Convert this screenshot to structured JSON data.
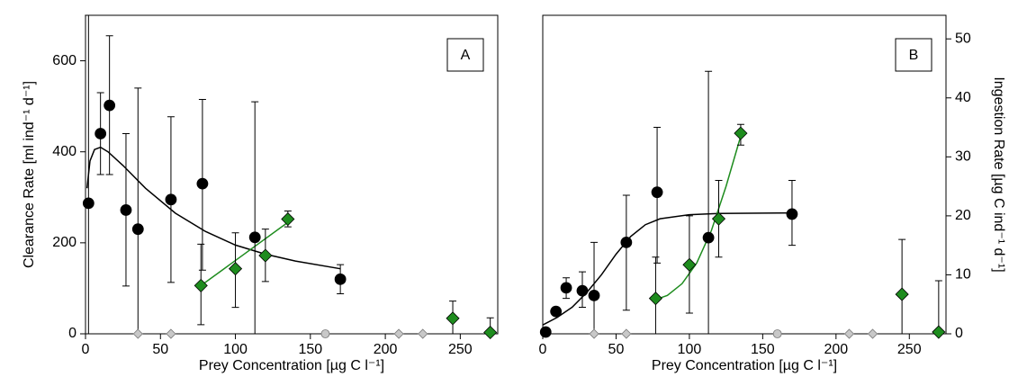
{
  "chart_data": [
    {
      "type": "scatter",
      "panel_label": "A",
      "xlabel": "Prey Concentration [µg C l⁻¹]",
      "ylabel": "Clearance Rate [ml ind⁻¹ d⁻¹]",
      "y_axis_side": "left",
      "xlim": [
        0,
        275
      ],
      "ylim": [
        0,
        700
      ],
      "xticks": [
        0,
        50,
        100,
        150,
        200,
        250
      ],
      "yticks": [
        0,
        200,
        400,
        600
      ],
      "series": [
        {
          "color": "#000000",
          "marker": "circle",
          "x": [
            2,
            10,
            16,
            27,
            35,
            57,
            78,
            113,
            170
          ],
          "values": [
            287,
            440,
            502,
            272,
            230,
            295,
            330,
            212,
            120
          ],
          "err_low": [
            0,
            350,
            350,
            105,
            0,
            113,
            140,
            0,
            88
          ],
          "err_high": [
            700,
            530,
            655,
            440,
            540,
            477,
            515,
            510,
            152
          ]
        },
        {
          "color": "#1e8c1e",
          "marker": "diamond",
          "x": [
            77,
            100,
            120,
            135,
            245,
            270
          ],
          "values": [
            106,
            143,
            172,
            252,
            34,
            3
          ],
          "err_low": [
            20,
            58,
            115,
            235,
            0,
            0
          ],
          "err_high": [
            197,
            222,
            230,
            270,
            72,
            35
          ]
        },
        {
          "color": "#c8c8c8",
          "marker": "diamond",
          "x": [
            35,
            57,
            209,
            225
          ],
          "values": [
            0,
            0,
            0,
            0
          ]
        },
        {
          "color": "#c8c8c8",
          "marker": "circle",
          "x": [
            160
          ],
          "values": [
            0
          ]
        }
      ],
      "fits": [
        {
          "color": "#000000",
          "x": [
            1,
            3,
            6,
            10,
            15,
            25,
            40,
            60,
            80,
            100,
            120,
            140,
            170
          ],
          "values": [
            320,
            380,
            405,
            410,
            400,
            370,
            320,
            265,
            225,
            195,
            175,
            160,
            143
          ]
        },
        {
          "color": "#1e8c1e",
          "x": [
            77,
            135
          ],
          "values": [
            106,
            245
          ]
        }
      ]
    },
    {
      "type": "scatter",
      "panel_label": "B",
      "xlabel": "Prey Concentration [µg C l⁻¹]",
      "ylabel": "Ingestion Rate [µg C ind⁻¹ d⁻¹]",
      "y_axis_side": "right",
      "xlim": [
        0,
        275
      ],
      "ylim": [
        0,
        54
      ],
      "xticks": [
        0,
        50,
        100,
        150,
        200,
        250
      ],
      "yticks": [
        0,
        10,
        20,
        30,
        40,
        50
      ],
      "series": [
        {
          "color": "#000000",
          "marker": "circle",
          "x": [
            2,
            9,
            16,
            27,
            35,
            57,
            78,
            113,
            170
          ],
          "values": [
            0.3,
            3.8,
            7.8,
            7.3,
            6.5,
            15.5,
            24,
            16.3,
            20.3
          ],
          "err_low": [
            0,
            3.8,
            6,
            4.5,
            0,
            4,
            12,
            0,
            15
          ],
          "err_high": [
            0.5,
            3.8,
            9.5,
            10.5,
            15.5,
            23.5,
            35,
            44.5,
            26
          ]
        },
        {
          "color": "#1e8c1e",
          "marker": "diamond",
          "x": [
            77,
            100,
            120,
            135,
            245,
            270
          ],
          "values": [
            6,
            11.7,
            19.5,
            34,
            6.7,
            0.3
          ],
          "err_low": [
            0,
            3.5,
            13,
            32,
            0,
            0
          ],
          "err_high": [
            13,
            20,
            26,
            35.5,
            16,
            9
          ]
        },
        {
          "color": "#c8c8c8",
          "marker": "diamond",
          "x": [
            35,
            57,
            209,
            225
          ],
          "values": [
            0,
            0,
            0,
            0
          ]
        },
        {
          "color": "#c8c8c8",
          "marker": "circle",
          "x": [
            160
          ],
          "values": [
            0
          ]
        }
      ],
      "fits": [
        {
          "color": "#000000",
          "x": [
            0,
            10,
            20,
            30,
            40,
            50,
            60,
            70,
            80,
            100,
            120,
            170
          ],
          "values": [
            1.5,
            2.8,
            4.5,
            7,
            10,
            13.5,
            16.5,
            18.5,
            19.5,
            20.2,
            20.4,
            20.5
          ]
        },
        {
          "color": "#1e8c1e",
          "x": [
            77,
            85,
            95,
            105,
            115,
            125,
            135
          ],
          "values": [
            5.8,
            6.5,
            8.5,
            12,
            17.5,
            25,
            33.5
          ]
        }
      ]
    }
  ]
}
